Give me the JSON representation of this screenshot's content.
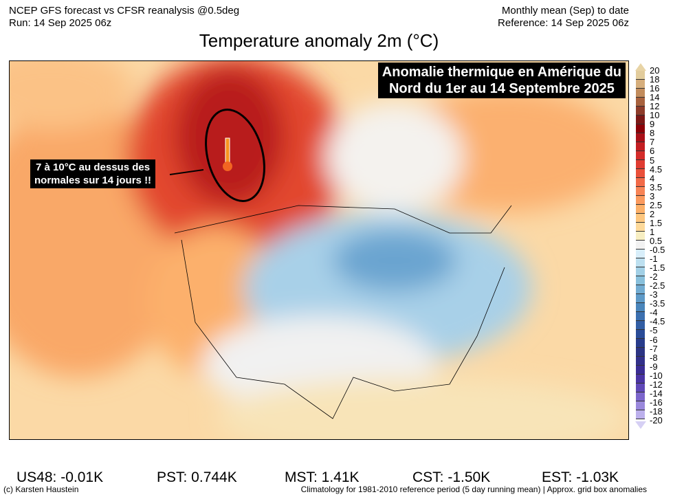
{
  "header": {
    "left_line1": "NCEP GFS forecast vs CFSR reanalysis @0.5deg",
    "left_line2": "Run: 14 Sep 2025 06z",
    "right_line1": "Monthly mean (Sep) to date",
    "right_line2": "Reference: 14 Sep 2025 06z",
    "title": "Temperature anomaly 2m (°C)"
  },
  "map": {
    "banner_line1": "Anomalie thermique en Amérique du",
    "banner_line2": "Nord du 1er au 14 Septembre 2025",
    "callout_line1": "7 à 10°C au dessus des",
    "callout_line2": "normales sur 14 jours !!",
    "thermometer_icon": "thermometer-hot"
  },
  "colorbar": {
    "labels": [
      "20",
      "18",
      "16",
      "14",
      "12",
      "10",
      "9",
      "8",
      "7",
      "6",
      "5",
      "4.5",
      "4",
      "3.5",
      "3",
      "2.5",
      "2",
      "1.5",
      "1",
      "0.5",
      "-0.5",
      "-1",
      "-1.5",
      "-2",
      "-2.5",
      "-3",
      "-3.5",
      "-4",
      "-4.5",
      "-5",
      "-6",
      "-7",
      "-8",
      "-9",
      "-10",
      "-12",
      "-14",
      "-16",
      "-18",
      "-20"
    ],
    "colors": [
      "#e2cc9c",
      "#d6ae7c",
      "#c28c5c",
      "#a8623e",
      "#8e3c2a",
      "#7c1816",
      "#8c0008",
      "#aa1018",
      "#c41e22",
      "#d42c2a",
      "#e03c32",
      "#ea503a",
      "#f26a48",
      "#f88456",
      "#fb9a5e",
      "#fcb068",
      "#fdc67e",
      "#fdd99a",
      "#f7eec2",
      "#f2f2f2",
      "#d8eefa",
      "#bde0f0",
      "#a2d0e6",
      "#88c0dc",
      "#72acd2",
      "#5e9ac8",
      "#4a86bc",
      "#3c70b0",
      "#325ea4",
      "#2a4c98",
      "#283c8c",
      "#2c3484",
      "#32308a",
      "#3a2c94",
      "#4a34a4",
      "#6048b8",
      "#7c66cc",
      "#9a88dc",
      "#bcb0ec"
    ]
  },
  "stats": [
    "US48: -0.01K",
    "PST: 0.744K",
    "MST: 1.41K",
    "CST: -1.50K",
    "EST: -1.03K"
  ],
  "footer": {
    "left": "(c) Karsten Haustein",
    "right": "Climatology for 1981-2010 reference period (5 day running mean) | Approx. grid box anomalies"
  }
}
